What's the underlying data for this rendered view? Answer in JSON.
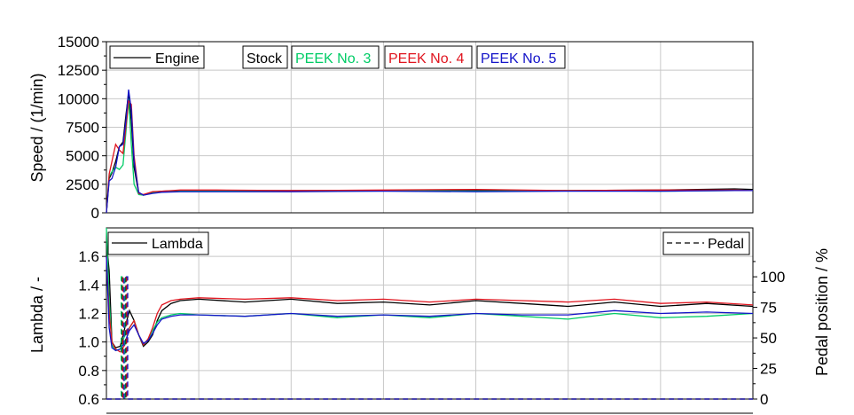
{
  "chart_data": [
    {
      "type": "line",
      "ylabel": "Speed / (1/min)",
      "xlim": [
        0,
        700
      ],
      "ylim": [
        0,
        15000
      ],
      "yticks": [
        "0",
        "2500",
        "5000",
        "7500",
        "10000",
        "12500",
        "15000"
      ],
      "grid": true,
      "legend_engine": "Engine",
      "legend_placement": "top-left",
      "series": [
        {
          "name": "Stock",
          "color": "#000000",
          "x": [
            0,
            3,
            6,
            10,
            14,
            18,
            21,
            24,
            27,
            30,
            35,
            40,
            50,
            60,
            80,
            120,
            200,
            300,
            400,
            500,
            600,
            680,
            700
          ],
          "y": [
            0,
            3000,
            3500,
            4500,
            5800,
            6200,
            8500,
            10500,
            8000,
            4000,
            1700,
            1550,
            1800,
            1900,
            1950,
            1950,
            1950,
            1950,
            1950,
            1950,
            2000,
            2100,
            2050
          ]
        },
        {
          "name": "PEEK No. 3",
          "color": "#00cc66",
          "x": [
            0,
            3,
            6,
            10,
            14,
            18,
            21,
            24,
            27,
            30,
            35,
            40,
            50,
            60,
            80,
            120,
            200,
            300,
            400,
            500,
            600,
            680,
            700
          ],
          "y": [
            0,
            3200,
            3600,
            4000,
            3800,
            4200,
            7000,
            10000,
            6000,
            2500,
            1600,
            1550,
            1750,
            1850,
            1900,
            1950,
            1900,
            1950,
            1900,
            1950,
            1900,
            1950,
            1950
          ]
        },
        {
          "name": "PEEK No. 4",
          "color": "#e0141e",
          "x": [
            0,
            3,
            6,
            10,
            14,
            18,
            21,
            24,
            27,
            30,
            35,
            40,
            50,
            60,
            80,
            120,
            200,
            300,
            400,
            500,
            600,
            680,
            700
          ],
          "y": [
            0,
            3400,
            4500,
            6000,
            5500,
            5200,
            7500,
            9800,
            9500,
            5000,
            1700,
            1600,
            1850,
            1900,
            2000,
            2000,
            1950,
            2000,
            2050,
            1950,
            2000,
            2000,
            1950
          ]
        },
        {
          "name": "PEEK No. 5",
          "color": "#1414c8",
          "x": [
            0,
            3,
            6,
            10,
            14,
            18,
            21,
            24,
            27,
            30,
            35,
            40,
            50,
            60,
            80,
            120,
            200,
            300,
            400,
            500,
            600,
            680,
            700
          ],
          "y": [
            0,
            2800,
            3000,
            4000,
            5800,
            6000,
            8000,
            10800,
            9000,
            4500,
            1800,
            1550,
            1700,
            1800,
            1850,
            1850,
            1850,
            1900,
            1850,
            1900,
            1900,
            1950,
            1950
          ]
        }
      ]
    },
    {
      "type": "line",
      "ylabel": "Lambda / -",
      "ylabel_right": "Pedal position / %",
      "xlim": [
        0,
        700
      ],
      "ylim": [
        0.6,
        1.8
      ],
      "ylim_right": [
        0,
        140
      ],
      "yticks": [
        "0.6",
        "0.8",
        "1.0",
        "1.2",
        "1.4",
        "1.6"
      ],
      "yticks_right": [
        "0",
        "25",
        "50",
        "75",
        "100"
      ],
      "grid": true,
      "legend_lambda": "Lambda",
      "legend_pedal": "Pedal",
      "series": [
        {
          "name": "Stock",
          "color": "#000000",
          "x": [
            0,
            3,
            6,
            10,
            15,
            20,
            25,
            30,
            35,
            40,
            45,
            50,
            55,
            60,
            70,
            80,
            100,
            150,
            200,
            250,
            300,
            350,
            400,
            450,
            500,
            550,
            600,
            650,
            700
          ],
          "y": [
            1.7,
            1.5,
            1.0,
            0.96,
            0.97,
            1.1,
            1.22,
            1.15,
            1.05,
            0.97,
            1.0,
            1.05,
            1.15,
            1.22,
            1.27,
            1.29,
            1.3,
            1.28,
            1.3,
            1.27,
            1.28,
            1.26,
            1.29,
            1.27,
            1.25,
            1.28,
            1.25,
            1.27,
            1.25
          ]
        },
        {
          "name": "PEEK No. 3",
          "color": "#00cc66",
          "x": [
            0,
            3,
            6,
            10,
            15,
            20,
            25,
            30,
            35,
            40,
            45,
            50,
            55,
            60,
            70,
            80,
            100,
            150,
            200,
            250,
            300,
            350,
            400,
            450,
            500,
            550,
            600,
            650,
            700
          ],
          "y": [
            1.8,
            1.3,
            0.98,
            0.94,
            0.95,
            1.05,
            1.1,
            1.15,
            1.05,
            0.98,
            1.02,
            1.08,
            1.14,
            1.17,
            1.19,
            1.2,
            1.19,
            1.18,
            1.2,
            1.17,
            1.19,
            1.17,
            1.2,
            1.18,
            1.16,
            1.2,
            1.17,
            1.18,
            1.2
          ]
        },
        {
          "name": "PEEK No. 4",
          "color": "#e0141e",
          "x": [
            0,
            3,
            6,
            10,
            15,
            20,
            25,
            30,
            35,
            40,
            45,
            50,
            55,
            60,
            70,
            80,
            100,
            150,
            200,
            250,
            300,
            350,
            400,
            450,
            500,
            550,
            600,
            650,
            700
          ],
          "y": [
            1.6,
            1.2,
            1.0,
            0.95,
            0.93,
            0.98,
            1.1,
            1.15,
            1.05,
            0.98,
            1.02,
            1.1,
            1.2,
            1.26,
            1.29,
            1.3,
            1.31,
            1.3,
            1.31,
            1.29,
            1.3,
            1.28,
            1.3,
            1.29,
            1.28,
            1.3,
            1.27,
            1.28,
            1.26
          ]
        },
        {
          "name": "PEEK No. 5",
          "color": "#1414c8",
          "x": [
            0,
            3,
            6,
            10,
            15,
            20,
            25,
            30,
            35,
            40,
            45,
            50,
            55,
            60,
            70,
            80,
            100,
            150,
            200,
            250,
            300,
            350,
            400,
            450,
            500,
            550,
            600,
            650,
            700
          ],
          "y": [
            1.6,
            1.1,
            0.96,
            0.94,
            0.95,
            1.0,
            1.08,
            1.12,
            1.05,
            0.99,
            1.01,
            1.06,
            1.12,
            1.16,
            1.18,
            1.19,
            1.19,
            1.18,
            1.2,
            1.18,
            1.19,
            1.18,
            1.2,
            1.19,
            1.19,
            1.22,
            1.2,
            1.21,
            1.2
          ]
        }
      ],
      "pedal_series": [
        {
          "name": "Stock",
          "color": "#000000",
          "x": [
            0,
            17,
            17,
            21,
            21,
            700
          ],
          "y": [
            0,
            0,
            100,
            100,
            0,
            0
          ]
        },
        {
          "name": "PEEK No. 3",
          "color": "#00cc66",
          "x": [
            0,
            16,
            16,
            20,
            20,
            700
          ],
          "y": [
            0,
            0,
            100,
            100,
            0,
            0
          ]
        },
        {
          "name": "PEEK No. 4",
          "color": "#e0141e",
          "x": [
            0,
            18,
            18,
            22,
            22,
            700
          ],
          "y": [
            0,
            0,
            100,
            100,
            0,
            0
          ]
        },
        {
          "name": "PEEK No. 5",
          "color": "#1414c8",
          "x": [
            0,
            19,
            19,
            23,
            23,
            700
          ],
          "y": [
            0,
            0,
            100,
            100,
            0,
            0
          ]
        }
      ]
    }
  ]
}
